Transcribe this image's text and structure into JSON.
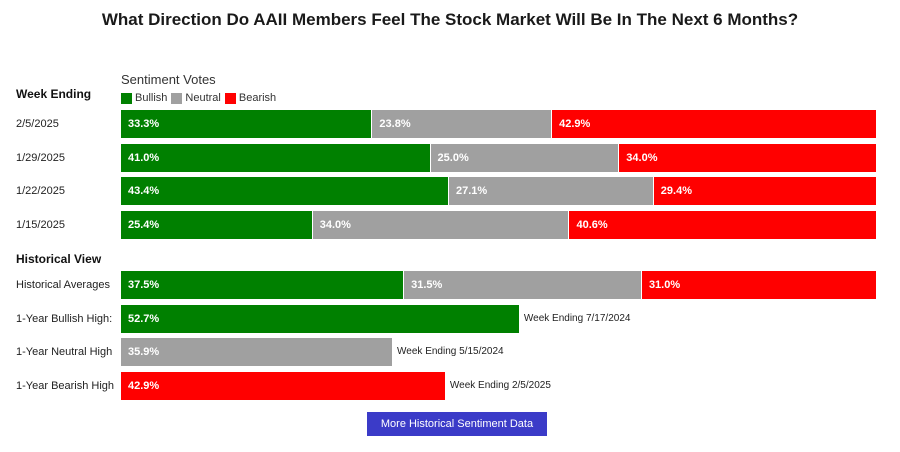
{
  "title": "What Direction Do AAII Members Feel The Stock Market Will Be In The Next 6 Months?",
  "sentiment_votes_label": "Sentiment Votes",
  "week_ending_label": "Week Ending",
  "historical_view_label": "Historical View",
  "legend": [
    {
      "name": "Bullish",
      "color": "#008000"
    },
    {
      "name": "Neutral",
      "color": "#a0a0a0"
    },
    {
      "name": "Bearish",
      "color": "#ff0000"
    }
  ],
  "button_label": "More Historical Sentiment Data",
  "chart_data": {
    "type": "bar",
    "stacked": true,
    "orientation": "horizontal",
    "series_names": [
      "Bullish",
      "Neutral",
      "Bearish"
    ],
    "weekly": [
      {
        "label": "2/5/2025",
        "values": [
          33.3,
          23.8,
          42.9
        ],
        "texts": [
          "33.3%",
          "23.8%",
          "42.9%"
        ]
      },
      {
        "label": "1/29/2025",
        "values": [
          41.0,
          25.0,
          34.0
        ],
        "texts": [
          "41.0%",
          "25.0%",
          "34.0%"
        ]
      },
      {
        "label": "1/22/2025",
        "values": [
          43.4,
          27.1,
          29.4
        ],
        "texts": [
          "43.4%",
          "27.1%",
          "29.4%"
        ]
      },
      {
        "label": "1/15/2025",
        "values": [
          25.4,
          34.0,
          40.6
        ],
        "texts": [
          "25.4%",
          "34.0%",
          "40.6%"
        ]
      }
    ],
    "historical_averages": {
      "label": "Historical Averages",
      "values": [
        37.5,
        31.5,
        31.0
      ],
      "texts": [
        "37.5%",
        "31.5%",
        "31.0%"
      ]
    },
    "one_year_highs": [
      {
        "label": "1-Year Bullish High:",
        "value": 52.7,
        "text": "52.7%",
        "series": "Bullish",
        "note": "Week Ending 7/17/2024"
      },
      {
        "label": "1-Year Neutral High",
        "value": 35.9,
        "text": "35.9%",
        "series": "Neutral",
        "note": "Week Ending 5/15/2024"
      },
      {
        "label": "1-Year Bearish High",
        "value": 42.9,
        "text": "42.9%",
        "series": "Bearish",
        "note": "Week Ending 2/5/2025"
      }
    ]
  }
}
